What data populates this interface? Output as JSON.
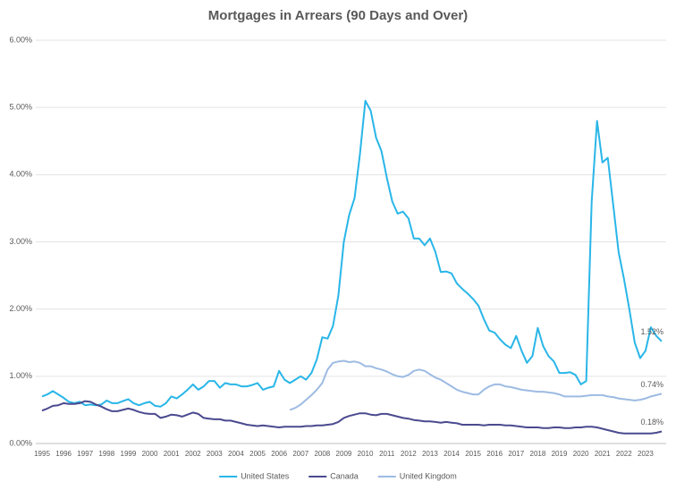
{
  "chart_data": {
    "type": "line",
    "title": "Mortgages in Arrears (90 Days and Over)",
    "categories": [
      "1995",
      null,
      null,
      null,
      "1996",
      null,
      null,
      null,
      "1997",
      null,
      null,
      null,
      "1998",
      null,
      null,
      null,
      "1999",
      null,
      null,
      null,
      "2000",
      null,
      null,
      null,
      "2001",
      null,
      null,
      null,
      "2002",
      null,
      null,
      null,
      "2003",
      null,
      null,
      null,
      "2004",
      null,
      null,
      null,
      "2005",
      null,
      null,
      null,
      "2006",
      null,
      null,
      null,
      "2007",
      null,
      null,
      null,
      "2008",
      null,
      null,
      null,
      "2009",
      null,
      null,
      null,
      "2010",
      null,
      null,
      null,
      "2011",
      null,
      null,
      null,
      "2012",
      null,
      null,
      null,
      "2013",
      null,
      null,
      null,
      "2014",
      null,
      null,
      null,
      "2015",
      null,
      null,
      null,
      "2016",
      null,
      null,
      null,
      "2017",
      null,
      null,
      null,
      "2018",
      null,
      null,
      null,
      "2019",
      null,
      null,
      null,
      "2020",
      null,
      null,
      null,
      "2021",
      null,
      null,
      null,
      "2022",
      null,
      null,
      null,
      "2023",
      null,
      null,
      null
    ],
    "ylim": [
      0,
      6
    ],
    "yticks": [
      {
        "value": 0,
        "label": "0.00%"
      },
      {
        "value": 1,
        "label": "1.00%"
      },
      {
        "value": 2,
        "label": "2.00%"
      },
      {
        "value": 3,
        "label": "3.00%"
      },
      {
        "value": 4,
        "label": "4.00%"
      },
      {
        "value": 5,
        "label": "5.00%"
      },
      {
        "value": 6,
        "label": "6.00%"
      }
    ],
    "grid": true,
    "legend": "bottom",
    "series": [
      {
        "name": "United States",
        "color": "#29b6e8",
        "end_label": "1.52%",
        "values": [
          0.7,
          0.73,
          0.78,
          0.73,
          0.68,
          0.62,
          0.6,
          0.62,
          0.57,
          0.58,
          0.57,
          0.58,
          0.64,
          0.6,
          0.6,
          0.63,
          0.66,
          0.6,
          0.57,
          0.6,
          0.62,
          0.56,
          0.55,
          0.6,
          0.7,
          0.67,
          0.73,
          0.8,
          0.88,
          0.8,
          0.85,
          0.93,
          0.93,
          0.83,
          0.9,
          0.88,
          0.88,
          0.85,
          0.85,
          0.87,
          0.9,
          0.8,
          0.83,
          0.85,
          1.08,
          0.95,
          0.9,
          0.95,
          1.0,
          0.95,
          1.05,
          1.25,
          1.58,
          1.56,
          1.75,
          2.2,
          3.0,
          3.4,
          3.65,
          4.3,
          5.1,
          4.95,
          4.55,
          4.35,
          3.95,
          3.6,
          3.42,
          3.45,
          3.35,
          3.05,
          3.05,
          2.95,
          3.05,
          2.85,
          2.55,
          2.56,
          2.53,
          2.38,
          2.3,
          2.23,
          2.15,
          2.05,
          1.85,
          1.68,
          1.65,
          1.55,
          1.47,
          1.42,
          1.6,
          1.38,
          1.2,
          1.3,
          1.72,
          1.45,
          1.3,
          1.22,
          1.05,
          1.05,
          1.06,
          1.02,
          0.88,
          0.93,
          3.6,
          4.8,
          4.18,
          4.25,
          3.55,
          2.85,
          2.45,
          2.0,
          1.5,
          1.27,
          1.38,
          1.73,
          1.6,
          1.52
        ]
      },
      {
        "name": "Canada",
        "color": "#4b4a8f",
        "end_label": "0.18%",
        "values": [
          0.49,
          0.52,
          0.56,
          0.57,
          0.6,
          0.59,
          0.59,
          0.6,
          0.63,
          0.62,
          0.58,
          0.55,
          0.51,
          0.48,
          0.48,
          0.5,
          0.52,
          0.5,
          0.47,
          0.45,
          0.44,
          0.44,
          0.38,
          0.4,
          0.43,
          0.42,
          0.4,
          0.43,
          0.46,
          0.44,
          0.38,
          0.37,
          0.36,
          0.36,
          0.34,
          0.34,
          0.32,
          0.3,
          0.28,
          0.27,
          0.26,
          0.27,
          0.26,
          0.25,
          0.24,
          0.25,
          0.25,
          0.25,
          0.25,
          0.26,
          0.26,
          0.27,
          0.27,
          0.28,
          0.29,
          0.32,
          0.38,
          0.41,
          0.43,
          0.45,
          0.45,
          0.43,
          0.42,
          0.44,
          0.44,
          0.42,
          0.4,
          0.38,
          0.37,
          0.35,
          0.34,
          0.33,
          0.33,
          0.32,
          0.31,
          0.32,
          0.31,
          0.3,
          0.28,
          0.28,
          0.28,
          0.28,
          0.27,
          0.28,
          0.28,
          0.28,
          0.27,
          0.27,
          0.26,
          0.25,
          0.24,
          0.24,
          0.24,
          0.23,
          0.23,
          0.24,
          0.24,
          0.23,
          0.23,
          0.24,
          0.24,
          0.25,
          0.25,
          0.24,
          0.22,
          0.2,
          0.18,
          0.16,
          0.15,
          0.15,
          0.15,
          0.15,
          0.15,
          0.15,
          0.16,
          0.18
        ]
      },
      {
        "name": "United Kingdom",
        "color": "#9dbbe3",
        "end_label": "0.74%",
        "values": [
          null,
          null,
          null,
          null,
          null,
          null,
          null,
          null,
          null,
          null,
          null,
          null,
          null,
          null,
          null,
          null,
          null,
          null,
          null,
          null,
          null,
          null,
          null,
          null,
          null,
          null,
          null,
          null,
          null,
          null,
          null,
          null,
          null,
          null,
          null,
          null,
          null,
          null,
          null,
          null,
          null,
          null,
          null,
          null,
          null,
          null,
          0.5,
          0.53,
          0.58,
          0.65,
          0.72,
          0.8,
          0.9,
          1.1,
          1.2,
          1.22,
          1.23,
          1.21,
          1.22,
          1.2,
          1.15,
          1.15,
          1.12,
          1.1,
          1.07,
          1.03,
          1.0,
          0.99,
          1.02,
          1.08,
          1.1,
          1.08,
          1.03,
          0.98,
          0.95,
          0.9,
          0.85,
          0.8,
          0.77,
          0.75,
          0.73,
          0.73,
          0.8,
          0.85,
          0.88,
          0.88,
          0.85,
          0.84,
          0.82,
          0.8,
          0.79,
          0.78,
          0.77,
          0.77,
          0.76,
          0.75,
          0.73,
          0.7,
          0.7,
          0.7,
          0.7,
          0.71,
          0.72,
          0.72,
          0.72,
          0.7,
          0.69,
          0.67,
          0.66,
          0.65,
          0.64,
          0.65,
          0.67,
          0.7,
          0.72,
          0.74
        ]
      }
    ]
  }
}
